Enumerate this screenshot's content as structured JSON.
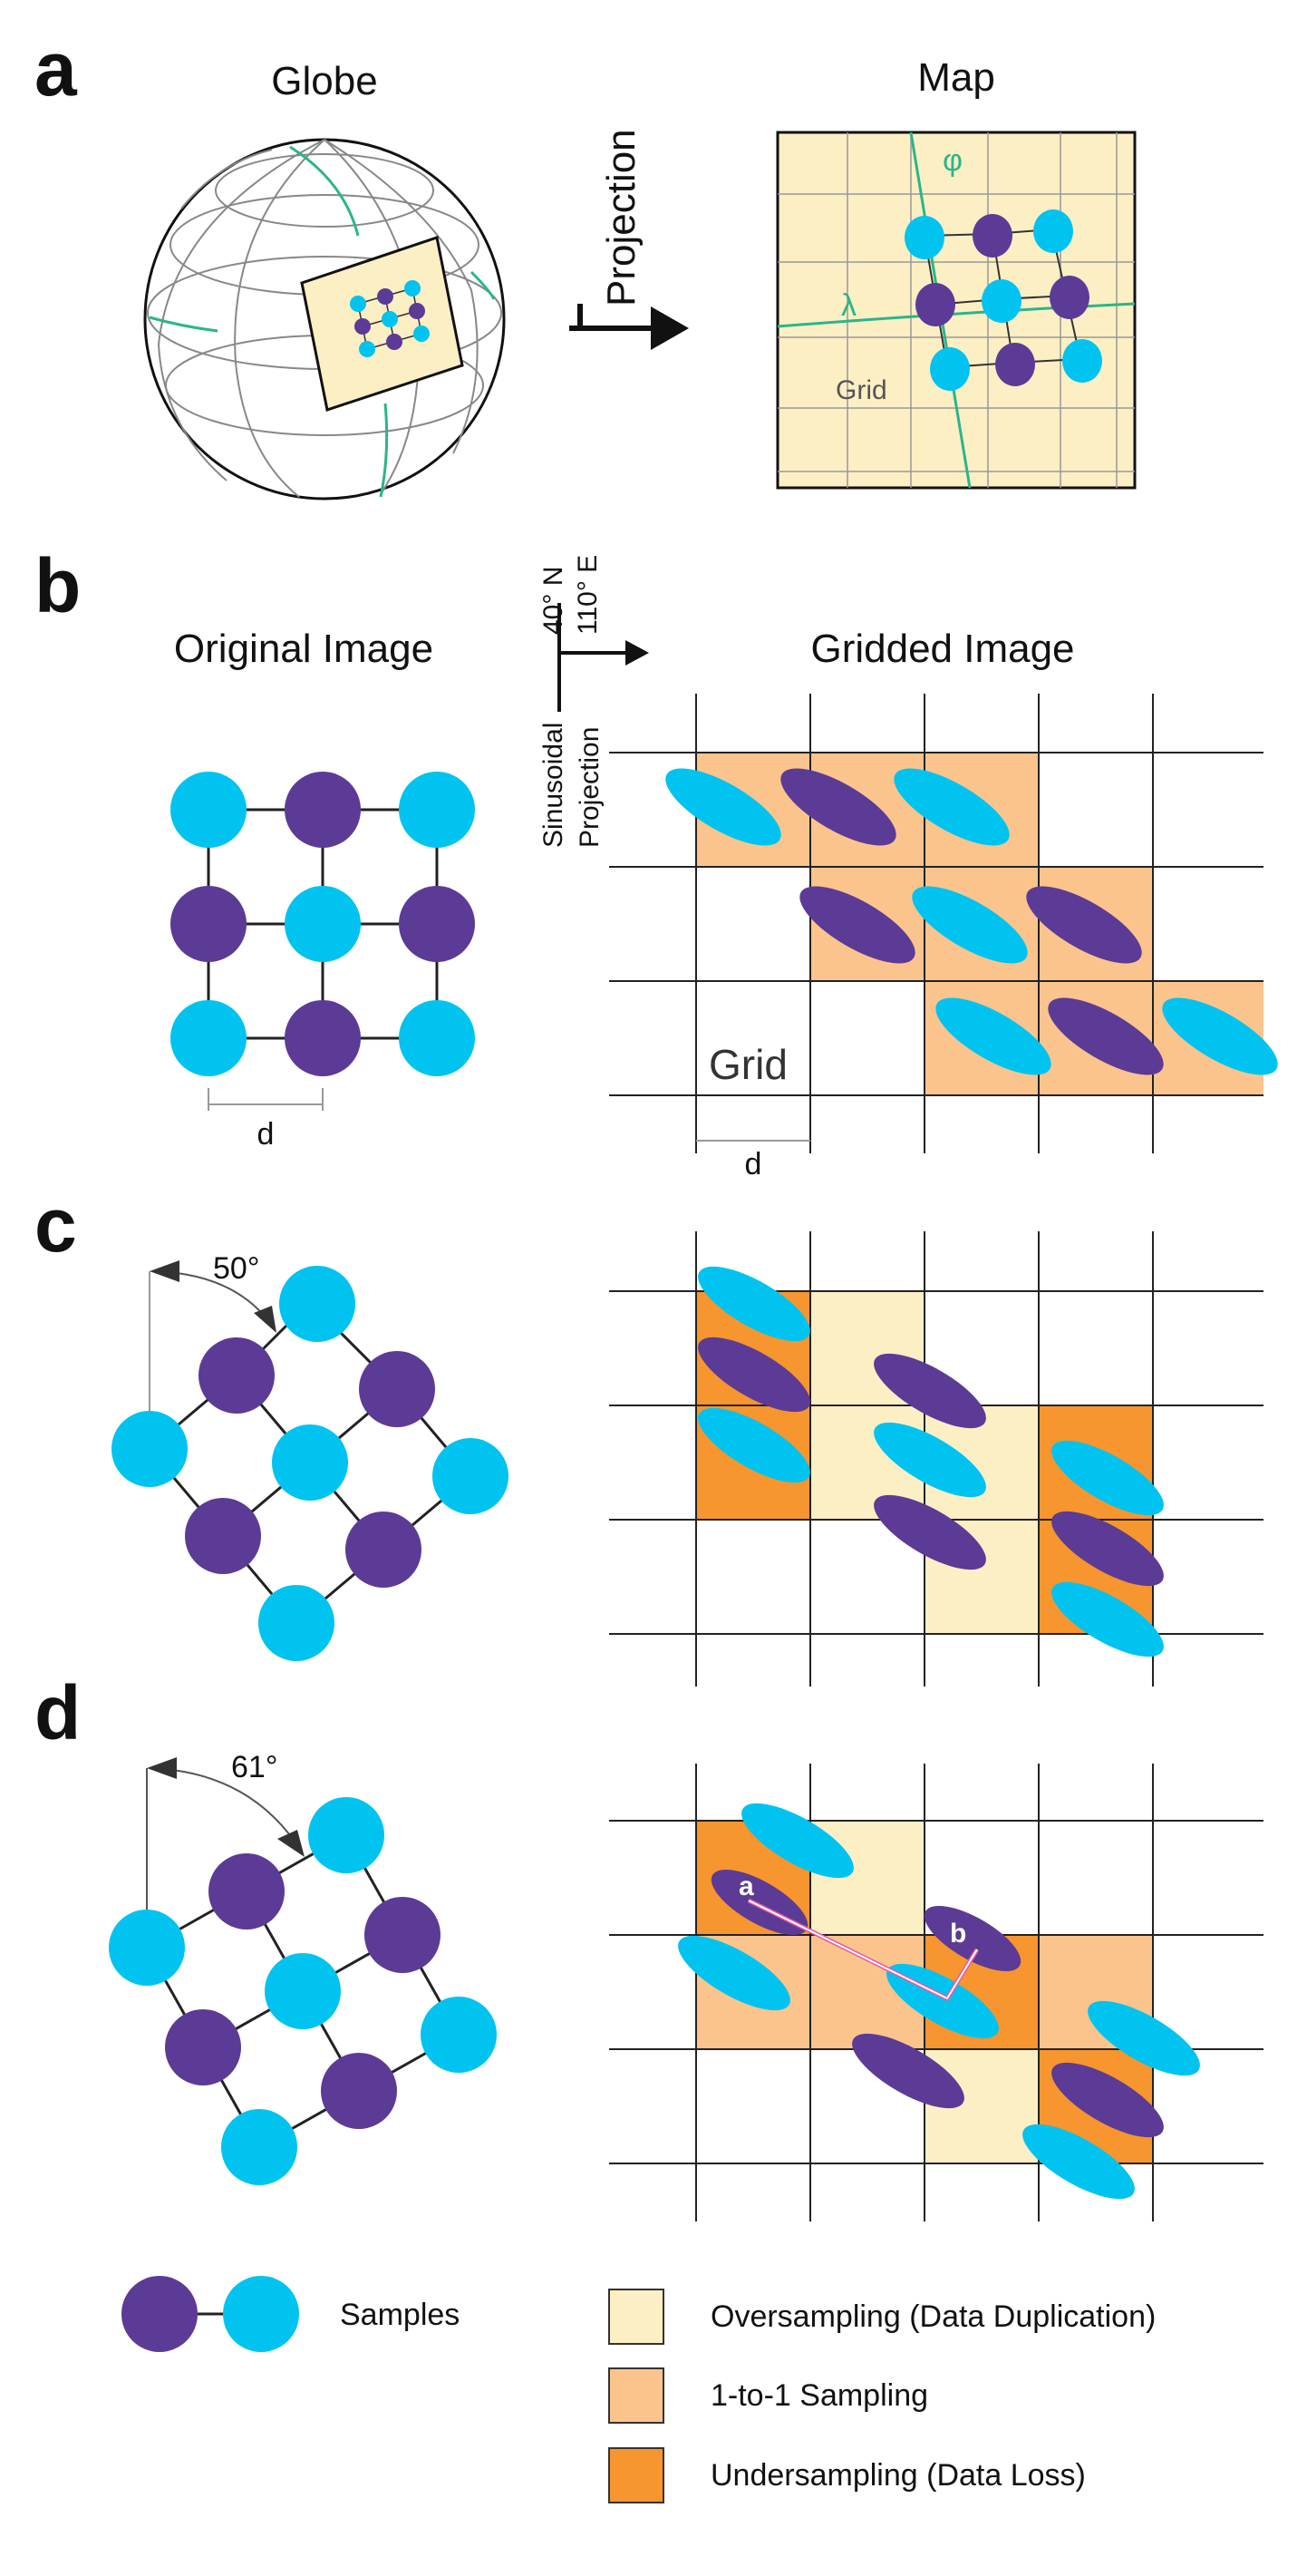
{
  "colors": {
    "purple": "#5b3b96",
    "cyan": "#00c3f0",
    "cream": "#fcefc4",
    "light_orange": "#fbc48c",
    "orange": "#f7952e",
    "green": "#2bb58a",
    "grid": "#333333",
    "pink": "#e65aa0"
  },
  "panel_a": {
    "letter": "a",
    "globe_title": "Globe",
    "map_title": "Map",
    "arrow_label": "Projection",
    "phi": "φ",
    "lambda": "λ",
    "grid_label": "Grid"
  },
  "panel_b": {
    "letter": "b",
    "original_title": "Original Image",
    "gridded_title": "Gridded Image",
    "arrow_top_line1": "40° N",
    "arrow_top_line2": "110° E",
    "arrow_bottom_line1": "Sinusoidal",
    "arrow_bottom_line2": "Projection",
    "spacing_label_left": "d",
    "spacing_label_right": "d",
    "grid_label": "Grid"
  },
  "panel_c": {
    "letter": "c",
    "angle_label": "50°"
  },
  "panel_d": {
    "letter": "d",
    "angle_label": "61°",
    "point_a": "a",
    "point_b": "b"
  },
  "legend": {
    "samples": "Samples",
    "oversampling": "Oversampling (Data Duplication)",
    "one_to_one": "1-to-1 Sampling",
    "undersampling": "Undersampling (Data Loss)"
  }
}
